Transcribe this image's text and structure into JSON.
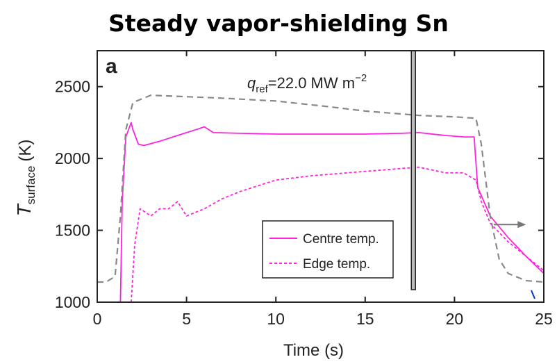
{
  "page_title": "Steady vapor-shielding Sn",
  "chart_data": {
    "type": "line",
    "panel_label": "a",
    "title": "",
    "xlabel": "Time (s)",
    "ylabel": "T_surface (K)",
    "ylabel_main": "T",
    "ylabel_sub": "surface",
    "ylabel_unit": "(K)",
    "xlim": [
      0,
      25
    ],
    "ylim": [
      1000,
      2750
    ],
    "xticks": [
      0,
      5,
      10,
      15,
      20,
      25
    ],
    "yticks": [
      1000,
      1500,
      2000,
      2500
    ],
    "annotation": {
      "q": "q",
      "sub": "ref",
      "value": "=22.0 MW m",
      "exp": "−2"
    },
    "legend_position": "lower-right",
    "colors": {
      "magenta": "#ff22dd",
      "gray": "#888888",
      "blue": "#0033cc"
    },
    "series": [
      {
        "name": "Centre temp.",
        "style": "solid",
        "color": "#ff22dd",
        "x": [
          1.3,
          1.4,
          1.6,
          1.9,
          2.0,
          2.3,
          2.6,
          3.5,
          4.5,
          5.5,
          6.0,
          6.5,
          8.0,
          10.0,
          12.0,
          15.0,
          17.0,
          18.0,
          19.5,
          20.5,
          21.1,
          21.3,
          22.0,
          23.0,
          24.0,
          25.0
        ],
        "y": [
          1000,
          1700,
          2150,
          2250,
          2200,
          2100,
          2090,
          2120,
          2160,
          2200,
          2220,
          2180,
          2175,
          2170,
          2170,
          2170,
          2175,
          2180,
          2160,
          2150,
          2150,
          1800,
          1600,
          1450,
          1320,
          1200
        ]
      },
      {
        "name": "Edge temp.",
        "style": "dashed",
        "color": "#ff22dd",
        "x": [
          1.9,
          2.1,
          2.4,
          3.0,
          3.5,
          4.0,
          4.5,
          5.0,
          6.0,
          7.0,
          8.0,
          10.0,
          12.0,
          14.0,
          16.0,
          17.0,
          18.0,
          19.5,
          20.5,
          21.2,
          21.5,
          22.0,
          23.0,
          24.0,
          25.0
        ],
        "y": [
          1000,
          1400,
          1650,
          1600,
          1650,
          1650,
          1700,
          1600,
          1650,
          1720,
          1770,
          1850,
          1880,
          1900,
          1920,
          1930,
          1940,
          1900,
          1900,
          1850,
          1700,
          1550,
          1420,
          1320,
          1220
        ]
      },
      {
        "name": "",
        "style": "dashed",
        "color": "#888888",
        "x": [
          0,
          0.5,
          1.0,
          1.3,
          1.6,
          2.0,
          3.0,
          5.0,
          7.0,
          10.0,
          13.0,
          15.0,
          17.0,
          18.0,
          20.0,
          21.2,
          21.5,
          22.0,
          22.5,
          23.0,
          24.0,
          25.0
        ],
        "y": [
          1140,
          1140,
          1180,
          1600,
          2200,
          2390,
          2440,
          2430,
          2420,
          2400,
          2360,
          2330,
          2310,
          2300,
          2290,
          2280,
          2100,
          1600,
          1300,
          1200,
          1150,
          1140
        ]
      }
    ],
    "arrow": {
      "x_from": 22.2,
      "x_to": 24.0,
      "y": 1540
    }
  }
}
